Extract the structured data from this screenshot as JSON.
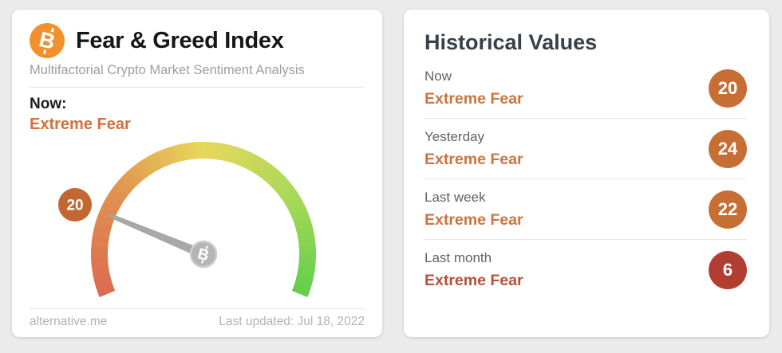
{
  "theme": {
    "page_bg": "#ebebeb",
    "card_bg": "#ffffff",
    "orange_accent": "#d2713a",
    "historical_title_color": "#394049",
    "row_label_color": "#5d6269",
    "footer_color": "#b2b2b2"
  },
  "fear_greed_card": {
    "bitcoin_icon": {
      "glyph": "B",
      "bg": "#f0912d"
    },
    "title": "Fear & Greed Index",
    "subtitle": "Multifactorial Crypto Market Sentiment Analysis",
    "now_label": "Now:",
    "now_value_text": "Extreme Fear",
    "footer": {
      "site": "alternative.me",
      "last_updated": "Last updated: Jul 18, 2022"
    }
  },
  "gauge": {
    "value": 20,
    "min": 0,
    "max": 100,
    "start_angle_deg": 202.5,
    "sweep_deg": 225,
    "gradient_stops": [
      "#dd6a51",
      "#e0914f",
      "#e8d75c",
      "#a9d958",
      "#62ce4c"
    ],
    "badge": {
      "value": 20,
      "bg": "#c2672f",
      "text_color": "#ffffff"
    },
    "needle_color": "#a8a8a8",
    "pivot": {
      "bg": "#b5b5b5",
      "ring": "#cdcdcd",
      "glyph": "B",
      "glyph_color": "#ffffff"
    }
  },
  "historical_card": {
    "title": "Historical Values",
    "rows": [
      {
        "label": "Now",
        "classification": "Extreme Fear",
        "value": "20",
        "badge_bg": "#c76e34",
        "classification_color": "#c9753f"
      },
      {
        "label": "Yesterday",
        "classification": "Extreme Fear",
        "value": "24",
        "badge_bg": "#c76e34",
        "classification_color": "#c9753f"
      },
      {
        "label": "Last week",
        "classification": "Extreme Fear",
        "value": "22",
        "badge_bg": "#c76e34",
        "classification_color": "#c9753f"
      },
      {
        "label": "Last month",
        "classification": "Extreme Fear",
        "value": "6",
        "badge_bg": "#b23e31",
        "classification_color": "#b5503c"
      }
    ]
  },
  "chart_data": {
    "type": "gauge",
    "title": "Fear & Greed Index",
    "value": 20,
    "classification": "Extreme Fear",
    "range": [
      0,
      100
    ],
    "color_scale": [
      "#dd6a51",
      "#e0914f",
      "#e8d75c",
      "#a9d958",
      "#62ce4c"
    ],
    "historical": [
      {
        "period": "Now",
        "value": 20,
        "classification": "Extreme Fear"
      },
      {
        "period": "Yesterday",
        "value": 24,
        "classification": "Extreme Fear"
      },
      {
        "period": "Last week",
        "value": 22,
        "classification": "Extreme Fear"
      },
      {
        "period": "Last month",
        "value": 6,
        "classification": "Extreme Fear"
      }
    ]
  }
}
